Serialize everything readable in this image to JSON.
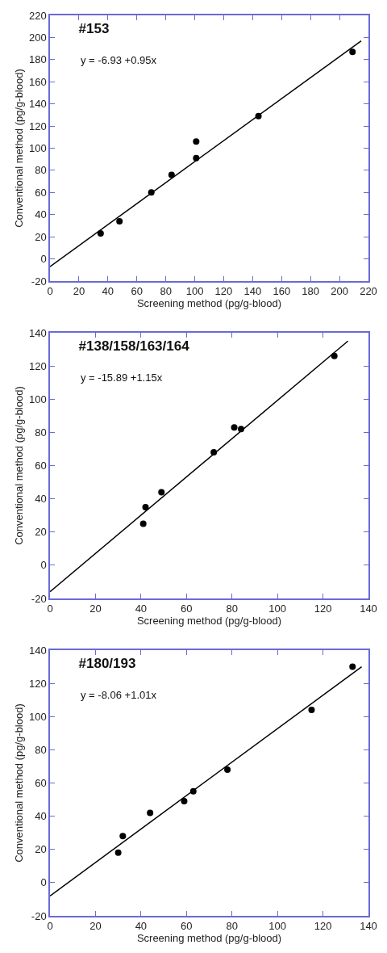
{
  "chart_data": [
    {
      "type": "scatter",
      "title": "#153",
      "xlabel": "Screening method (pg/g-blood)",
      "ylabel": "Conventional method (pg/g-blood)",
      "annotations": [
        "y = -6.93 +0.95x"
      ],
      "grid": false,
      "xlim": [
        0,
        220
      ],
      "xticks": [
        0,
        20,
        40,
        60,
        80,
        100,
        120,
        140,
        160,
        180,
        200,
        220
      ],
      "ylim": [
        -20,
        220
      ],
      "yticks": [
        -20,
        0,
        20,
        40,
        60,
        80,
        100,
        120,
        140,
        160,
        180,
        200,
        220
      ],
      "series": [
        {
          "marker": "circle",
          "color": "#000000",
          "x": [
            35,
            48,
            70,
            84,
            101,
            101,
            144,
            209
          ],
          "values": [
            23,
            34,
            60,
            76,
            106,
            91,
            129,
            187
          ]
        },
        {
          "type": "line",
          "marker": "none",
          "color": "#000000",
          "line_style": "solid",
          "x": [
            0,
            215
          ],
          "values": [
            -7,
            197
          ]
        }
      ]
    },
    {
      "type": "scatter",
      "title": "#138/158/163/164",
      "xlabel": "Screening method (pg/g-blood)",
      "ylabel": "Conventional method (pg/g-blood)",
      "annotations": [
        "y = -15.89 +1.15x"
      ],
      "grid": false,
      "xlim": [
        0,
        140
      ],
      "xticks": [
        0,
        20,
        40,
        60,
        80,
        100,
        120,
        140
      ],
      "ylim": [
        -20,
        140
      ],
      "yticks": [
        -20,
        0,
        20,
        40,
        60,
        80,
        100,
        120,
        140
      ],
      "series": [
        {
          "marker": "circle",
          "color": "#000000",
          "x": [
            41,
            42,
            49,
            72,
            81,
            84,
            125
          ],
          "values": [
            25,
            35,
            44,
            68,
            83,
            82,
            126
          ]
        },
        {
          "type": "line",
          "marker": "none",
          "color": "#000000",
          "line_style": "solid",
          "x": [
            0,
            131
          ],
          "values": [
            -16,
            135
          ]
        }
      ]
    },
    {
      "type": "scatter",
      "title": "#180/193",
      "xlabel": "Screening method (pg/g-blood)",
      "ylabel": "Conventional method (pg/g-blood)",
      "annotations": [
        "y = -8.06 +1.01x"
      ],
      "grid": false,
      "xlim": [
        0,
        140
      ],
      "xticks": [
        0,
        20,
        40,
        60,
        80,
        100,
        120,
        140
      ],
      "ylim": [
        -20,
        140
      ],
      "yticks": [
        -20,
        0,
        20,
        40,
        60,
        80,
        100,
        120,
        140
      ],
      "series": [
        {
          "marker": "circle",
          "color": "#000000",
          "x": [
            30,
            32,
            44,
            59,
            63,
            78,
            115,
            133
          ],
          "values": [
            18,
            28,
            42,
            49,
            55,
            68,
            104,
            130
          ]
        },
        {
          "type": "line",
          "marker": "none",
          "color": "#000000",
          "line_style": "solid",
          "x": [
            0,
            137
          ],
          "values": [
            -8,
            130
          ]
        }
      ]
    }
  ]
}
